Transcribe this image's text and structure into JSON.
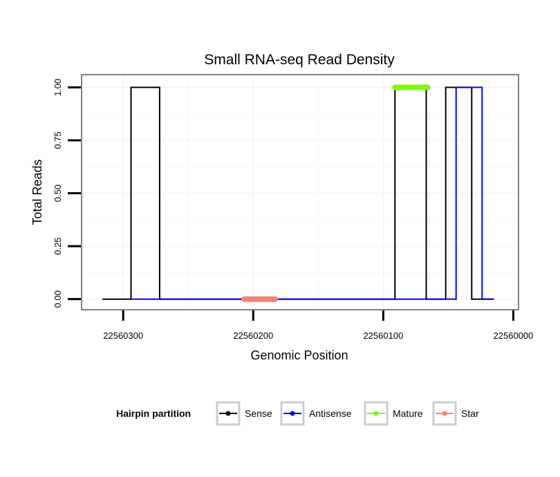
{
  "chart_data": {
    "type": "line",
    "title": "Small RNA-seq Read Density",
    "xlabel": "Genomic Position",
    "ylabel": "Total Reads",
    "x_reversed": true,
    "xlim": [
      22560332,
      22559996
    ],
    "ylim": [
      -0.05,
      1.06
    ],
    "x_ticks": [
      22560300,
      22560200,
      22560100,
      22560000
    ],
    "x_tick_labels": [
      "22560300",
      "22560200",
      "22560100",
      "22560000"
    ],
    "y_ticks": [
      0,
      0.25,
      0.5,
      0.75,
      1
    ],
    "y_tick_labels": [
      "0.00",
      "0.25",
      "0.50",
      "0.75",
      "1.00"
    ],
    "grid": true,
    "legend": {
      "title": "Hairpin partition",
      "position": "bottom",
      "entries": [
        "Sense",
        "Antisense",
        "Mature",
        "Star"
      ]
    },
    "series": [
      {
        "name": "Sense",
        "color": "#000000",
        "kind": "line",
        "x": [
          22560316,
          22560294,
          22560294,
          22560272,
          22560272,
          22560091,
          22560091,
          22560067,
          22560067,
          22560052,
          22560052,
          22560032,
          22560032,
          22560015
        ],
        "y": [
          0,
          0,
          1,
          1,
          0,
          0,
          1,
          1,
          0,
          0,
          1,
          1,
          0,
          0
        ]
      },
      {
        "name": "Antisense",
        "color": "#0000ff",
        "kind": "line",
        "x": [
          22560294,
          22560272,
          22560091,
          22560052,
          22560044,
          22560044,
          22560024,
          22560024,
          22560015
        ],
        "y": [
          0,
          0,
          0,
          0,
          0,
          1,
          1,
          0,
          0
        ]
      },
      {
        "name": "Mature",
        "color": "#7cfc00",
        "kind": "segment",
        "x": [
          22560091,
          22560066
        ],
        "y": [
          1,
          1
        ]
      },
      {
        "name": "Star",
        "color": "#fa8072",
        "kind": "segment",
        "x": [
          22560207,
          22560183
        ],
        "y": [
          0,
          0
        ]
      }
    ]
  }
}
